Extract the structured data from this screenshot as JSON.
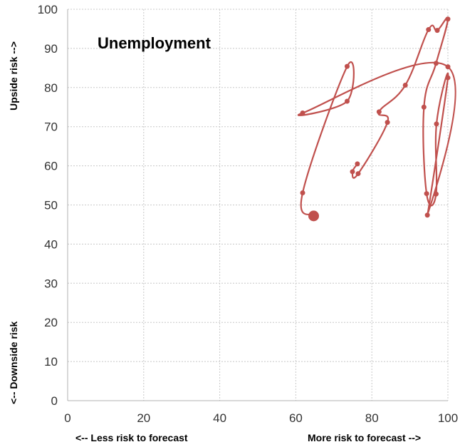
{
  "chart_data": {
    "type": "scatter",
    "title": "Unemployment",
    "xlim": [
      0,
      100
    ],
    "ylim": [
      0,
      100
    ],
    "x_ticks": [
      0,
      20,
      40,
      60,
      80,
      100
    ],
    "y_ticks": [
      0,
      10,
      20,
      30,
      40,
      50,
      60,
      70,
      80,
      90,
      100
    ],
    "x_note_left": "<-- Less risk to forecast",
    "x_note_right": "More risk to forecast -->",
    "y_note_top": "Upside risk -->",
    "y_note_bottom": "<-- Downside risk",
    "grid": true,
    "series_color": "#c0504d",
    "points": [
      {
        "x": 76.2,
        "y": 60.5
      },
      {
        "x": 74.9,
        "y": 58.5
      },
      {
        "x": 76.4,
        "y": 58.0
      },
      {
        "x": 84.1,
        "y": 71.1
      },
      {
        "x": 81.9,
        "y": 73.8
      },
      {
        "x": 88.8,
        "y": 80.6
      },
      {
        "x": 94.9,
        "y": 94.8
      },
      {
        "x": 97.2,
        "y": 94.6
      },
      {
        "x": 100.0,
        "y": 97.5
      },
      {
        "x": 96.9,
        "y": 86.2
      },
      {
        "x": 93.7,
        "y": 75.0
      },
      {
        "x": 94.4,
        "y": 52.9
      },
      {
        "x": 96.9,
        "y": 52.8
      },
      {
        "x": 97.0,
        "y": 70.7
      },
      {
        "x": 100.0,
        "y": 82.5
      },
      {
        "x": 94.6,
        "y": 47.4
      },
      {
        "x": 100.0,
        "y": 85.3
      },
      {
        "x": 61.8,
        "y": 73.5
      },
      {
        "x": 73.5,
        "y": 76.5
      },
      {
        "x": 73.5,
        "y": 85.4
      },
      {
        "x": 61.8,
        "y": 53.1
      },
      {
        "x": 64.7,
        "y": 47.2
      }
    ]
  }
}
